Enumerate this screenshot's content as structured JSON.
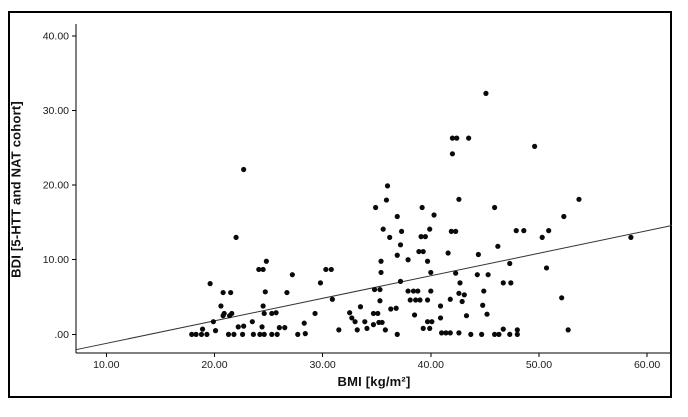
{
  "figure": {
    "background": "#ffffff",
    "border_color": "#000000"
  },
  "chart_data": {
    "type": "scatter",
    "title": "",
    "xlabel": "BMI [kg/m²]",
    "ylabel": "BDI [5-HTT and NAT cohort]",
    "x_ticks": [
      10,
      20,
      30,
      40,
      50,
      60
    ],
    "x_tick_labels": [
      "10.00",
      "20.00",
      "30.00",
      "40.00",
      "50.00",
      "60.00"
    ],
    "y_ticks": [
      0,
      10,
      20,
      30,
      40
    ],
    "y_tick_labels": [
      ".00",
      "10.00",
      "20.00",
      "30.00",
      "40.00"
    ],
    "xlim": [
      7.2,
      62.3
    ],
    "ylim": [
      -2.5,
      41.6
    ],
    "grid": false,
    "legend": null,
    "marker_color": "#0a0a0a",
    "axis_color": "#000000",
    "trend_line": {
      "slope": 0.302,
      "intercept": -4.23,
      "x_start": 7.2,
      "x_end": 62.3,
      "color": "#333333"
    },
    "points": [
      [
        22.7,
        22.1
      ],
      [
        45.1,
        32.3
      ],
      [
        42.0,
        26.3
      ],
      [
        42.4,
        26.3
      ],
      [
        43.5,
        26.3
      ],
      [
        42.0,
        24.2
      ],
      [
        49.6,
        25.2
      ],
      [
        36.0,
        19.9
      ],
      [
        35.9,
        18.0
      ],
      [
        34.9,
        17.0
      ],
      [
        39.2,
        17.0
      ],
      [
        42.6,
        18.1
      ],
      [
        45.9,
        17.0
      ],
      [
        36.9,
        15.8
      ],
      [
        40.3,
        16.0
      ],
      [
        53.7,
        18.1
      ],
      [
        52.3,
        15.8
      ],
      [
        47.9,
        13.9
      ],
      [
        48.6,
        13.9
      ],
      [
        50.9,
        13.9
      ],
      [
        50.3,
        13.0
      ],
      [
        58.5,
        13.0
      ],
      [
        35.6,
        14.1
      ],
      [
        36.2,
        13.0
      ],
      [
        37.3,
        13.8
      ],
      [
        39.1,
        13.1
      ],
      [
        39.5,
        13.1
      ],
      [
        39.9,
        14.1
      ],
      [
        41.9,
        13.8
      ],
      [
        42.3,
        13.8
      ],
      [
        22.0,
        13.0
      ],
      [
        37.2,
        12.0
      ],
      [
        38.9,
        11.1
      ],
      [
        39.3,
        11.1
      ],
      [
        39.7,
        9.8
      ],
      [
        35.4,
        9.8
      ],
      [
        36.9,
        10.6
      ],
      [
        37.9,
        10.0
      ],
      [
        41.6,
        10.9
      ],
      [
        44.4,
        10.7
      ],
      [
        46.2,
        11.8
      ],
      [
        24.8,
        9.8
      ],
      [
        47.3,
        9.5
      ],
      [
        24.1,
        8.7
      ],
      [
        24.5,
        8.7
      ],
      [
        27.2,
        8.0
      ],
      [
        30.3,
        8.7
      ],
      [
        30.8,
        8.7
      ],
      [
        50.7,
        8.9
      ],
      [
        35.4,
        8.3
      ],
      [
        40.0,
        8.3
      ],
      [
        42.3,
        8.2
      ],
      [
        44.3,
        8.0
      ],
      [
        45.3,
        8.0
      ],
      [
        37.2,
        7.1
      ],
      [
        46.7,
        6.9
      ],
      [
        47.4,
        6.9
      ],
      [
        42.7,
        6.9
      ],
      [
        19.6,
        6.8
      ],
      [
        29.8,
        6.9
      ],
      [
        20.8,
        5.6
      ],
      [
        21.5,
        5.6
      ],
      [
        24.7,
        5.7
      ],
      [
        26.7,
        5.6
      ],
      [
        34.8,
        6.0
      ],
      [
        35.3,
        6.0
      ],
      [
        37.9,
        5.8
      ],
      [
        38.4,
        5.8
      ],
      [
        38.8,
        5.8
      ],
      [
        40.0,
        5.8
      ],
      [
        42.6,
        5.5
      ],
      [
        43.1,
        5.3
      ],
      [
        44.9,
        5.8
      ],
      [
        52.1,
        4.9
      ],
      [
        30.9,
        4.7
      ],
      [
        35.3,
        4.5
      ],
      [
        38.1,
        4.6
      ],
      [
        38.6,
        4.6
      ],
      [
        39.0,
        4.6
      ],
      [
        39.7,
        4.6
      ],
      [
        41.8,
        4.7
      ],
      [
        42.9,
        4.4
      ],
      [
        44.8,
        3.9
      ],
      [
        40.9,
        3.8
      ],
      [
        33.5,
        3.7
      ],
      [
        20.6,
        3.8
      ],
      [
        24.5,
        3.8
      ],
      [
        36.3,
        3.4
      ],
      [
        36.8,
        3.5
      ],
      [
        20.9,
        2.8
      ],
      [
        21.6,
        2.8
      ],
      [
        24.6,
        2.8
      ],
      [
        25.3,
        2.8
      ],
      [
        25.7,
        2.9
      ],
      [
        29.3,
        2.8
      ],
      [
        32.5,
        2.9
      ],
      [
        34.7,
        2.8
      ],
      [
        35.1,
        2.8
      ],
      [
        38.5,
        2.6
      ],
      [
        43.3,
        2.5
      ],
      [
        45.2,
        2.7
      ],
      [
        32.7,
        2.2
      ],
      [
        40.9,
        2.2
      ],
      [
        20.8,
        2.5
      ],
      [
        21.4,
        2.5
      ],
      [
        19.9,
        1.7
      ],
      [
        23.5,
        1.7
      ],
      [
        28.3,
        1.5
      ],
      [
        33.0,
        1.7
      ],
      [
        33.9,
        1.7
      ],
      [
        34.7,
        1.3
      ],
      [
        35.2,
        1.6
      ],
      [
        35.5,
        1.6
      ],
      [
        39.7,
        1.7
      ],
      [
        40.1,
        1.7
      ],
      [
        18.9,
        0.7
      ],
      [
        20.1,
        0.5
      ],
      [
        22.2,
        1.0
      ],
      [
        22.7,
        1.1
      ],
      [
        24.4,
        1.0
      ],
      [
        26.0,
        0.9
      ],
      [
        26.5,
        0.9
      ],
      [
        31.5,
        0.6
      ],
      [
        33.2,
        0.6
      ],
      [
        34.1,
        0.8
      ],
      [
        35.8,
        0.6
      ],
      [
        39.3,
        0.8
      ],
      [
        39.9,
        0.8
      ],
      [
        46.7,
        0.7
      ],
      [
        48.0,
        0.6
      ],
      [
        52.7,
        0.6
      ],
      [
        17.9,
        0
      ],
      [
        18.3,
        0
      ],
      [
        18.8,
        0
      ],
      [
        19.3,
        0
      ],
      [
        21.3,
        0
      ],
      [
        21.8,
        0
      ],
      [
        22.6,
        0
      ],
      [
        23.6,
        0
      ],
      [
        24.2,
        0
      ],
      [
        24.6,
        0
      ],
      [
        25.3,
        0
      ],
      [
        25.8,
        0
      ],
      [
        27.7,
        0
      ],
      [
        28.4,
        0.1
      ],
      [
        36.9,
        0
      ],
      [
        41.0,
        0.2
      ],
      [
        41.4,
        0.2
      ],
      [
        41.8,
        0.2
      ],
      [
        42.6,
        0.2
      ],
      [
        43.7,
        0
      ],
      [
        44.7,
        0
      ],
      [
        45.9,
        0
      ],
      [
        46.3,
        0
      ],
      [
        47.3,
        0
      ],
      [
        48.0,
        0
      ]
    ]
  }
}
